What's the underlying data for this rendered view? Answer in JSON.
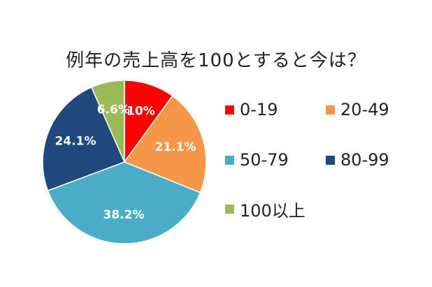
{
  "title": "例年の売上高を100とすると今は？",
  "chart_data": {
    "type": "pie",
    "title": "例年の売上高を100とすると今は？",
    "start_angle_deg": 0,
    "direction": "clockwise",
    "legend_position": "right",
    "slices": [
      {
        "label": "0-19",
        "value": 10,
        "display": "10%",
        "color": "#ff0000"
      },
      {
        "label": "20-49",
        "value": 21.1,
        "display": "21.1%",
        "color": "#f79646"
      },
      {
        "label": "50-79",
        "value": 38.2,
        "display": "38.2%",
        "color": "#4bacc6"
      },
      {
        "label": "80-99",
        "value": 24.1,
        "display": "24.1%",
        "color": "#1f497d"
      },
      {
        "label": "100以上",
        "value": 6.6,
        "display": "6.6%",
        "color": "#9bbb59"
      }
    ]
  }
}
